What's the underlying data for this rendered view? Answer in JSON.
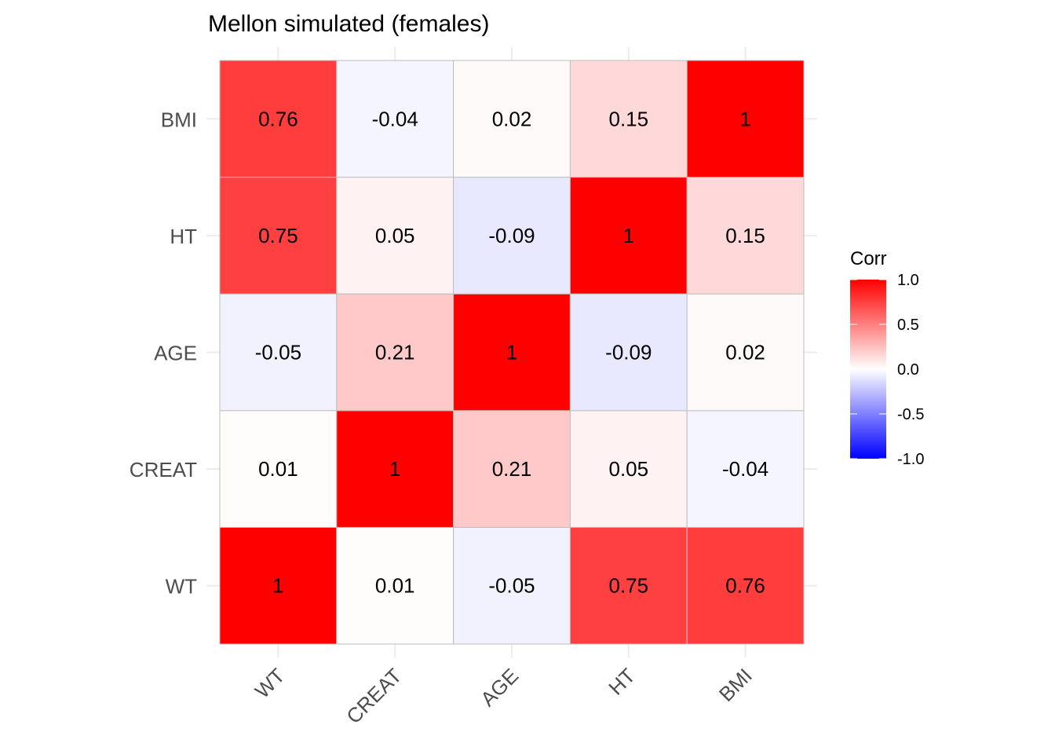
{
  "chart_data": {
    "type": "heatmap",
    "title": "Mellon simulated (females)",
    "xlabel": "",
    "ylabel": "",
    "x_categories": [
      "WT",
      "CREAT",
      "AGE",
      "HT",
      "BMI"
    ],
    "y_categories": [
      "WT",
      "CREAT",
      "AGE",
      "HT",
      "BMI"
    ],
    "matrix": [
      [
        1,
        0.01,
        -0.05,
        0.75,
        0.76
      ],
      [
        0.01,
        1,
        0.21,
        0.05,
        -0.04
      ],
      [
        -0.05,
        0.21,
        1,
        -0.09,
        0.02
      ],
      [
        0.75,
        0.05,
        -0.09,
        1,
        0.15
      ],
      [
        0.76,
        -0.04,
        0.02,
        0.15,
        1
      ]
    ],
    "cell_labels": [
      [
        "1",
        "0.01",
        "-0.05",
        "0.75",
        "0.76"
      ],
      [
        "0.01",
        "1",
        "0.21",
        "0.05",
        "-0.04"
      ],
      [
        "-0.05",
        "0.21",
        "1",
        "-0.09",
        "0.02"
      ],
      [
        "0.75",
        "0.05",
        "-0.09",
        "1",
        "0.15"
      ],
      [
        "0.76",
        "-0.04",
        "0.02",
        "0.15",
        "1"
      ]
    ],
    "matrix_note": "matrix[i][j] = correlation between y_categories[i] and x_categories[j]",
    "x_tick_rotation_deg": 45,
    "grid": true,
    "legend": {
      "title": "Corr",
      "position": "right",
      "range": [
        -1.0,
        1.0
      ],
      "ticks": [
        1.0,
        0.5,
        0.0,
        -0.5,
        -1.0
      ],
      "tick_labels": [
        "1.0",
        "0.5",
        "0.0",
        "-0.5",
        "-1.0"
      ],
      "colors": {
        "low": "#0000FF",
        "mid": "#FFFFFF",
        "high": "#FF0000"
      }
    },
    "cell_border_color": "#BEBEBE"
  }
}
